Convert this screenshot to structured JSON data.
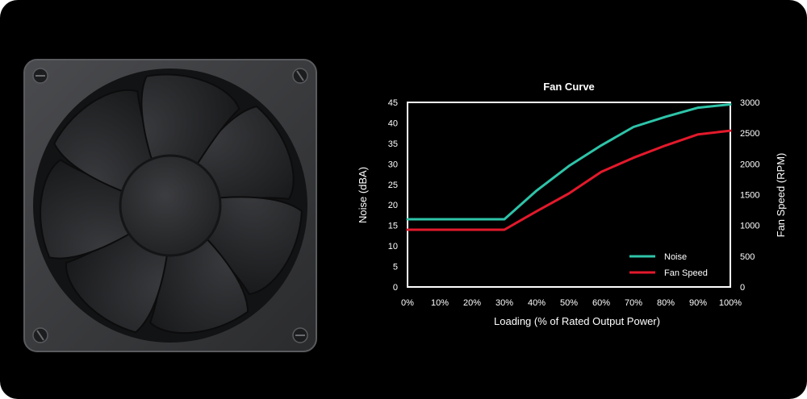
{
  "chart_data": {
    "type": "line",
    "title": "Fan Curve",
    "xlabel": "Loading (% of Rated Output Power)",
    "ylabel_left": "Noise (dBA)",
    "ylabel_right": "Fan Speed (RPM)",
    "x": [
      0,
      10,
      20,
      30,
      40,
      50,
      60,
      70,
      80,
      90,
      100
    ],
    "x_tick_labels": [
      "0%",
      "10%",
      "20%",
      "30%",
      "40%",
      "50%",
      "60%",
      "70%",
      "80%",
      "90%",
      "100%"
    ],
    "xlim": [
      0,
      100
    ],
    "ylim_left": [
      0,
      45
    ],
    "ylim_right": [
      0,
      3000
    ],
    "y_ticks_left": [
      0,
      5,
      10,
      15,
      20,
      25,
      30,
      35,
      40,
      45
    ],
    "y_ticks_right": [
      0,
      500,
      1000,
      1500,
      2000,
      2500,
      3000
    ],
    "grid": false,
    "legend_position": "bottom-right",
    "series": [
      {
        "name": "Noise",
        "axis": "left",
        "color": "#2ec4a9",
        "values": [
          16.5,
          16.5,
          16.5,
          16.5,
          23.5,
          29.5,
          34.5,
          39,
          41.5,
          43.7,
          44.5
        ]
      },
      {
        "name": "Fan Speed",
        "axis": "right",
        "color": "#e3192b",
        "values": [
          930,
          930,
          930,
          930,
          1230,
          1520,
          1870,
          2100,
          2300,
          2480,
          2540
        ]
      }
    ]
  },
  "colors": {
    "background": "#000000",
    "frame_plot": "#ffffff",
    "fan_body": "#2b2c2e",
    "fan_blade": "#1e1f21"
  },
  "fan": {
    "icon": "case-fan-icon",
    "blade_count": 7
  }
}
